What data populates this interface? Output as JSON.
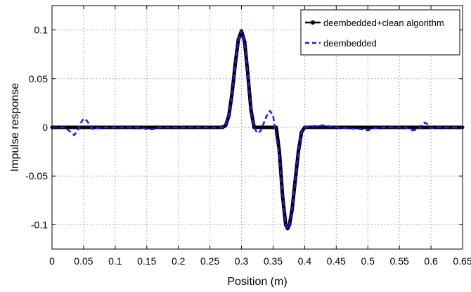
{
  "chart_data": {
    "type": "line",
    "xlabel": "Position (m)",
    "ylabel": "Impulse response",
    "xlim": [
      0,
      0.65
    ],
    "ylim": [
      -0.125,
      0.125
    ],
    "grid": true,
    "legend_position": "top-right",
    "x_ticks": [
      0,
      0.05,
      0.1,
      0.15,
      0.2,
      0.25,
      0.3,
      0.35,
      0.4,
      0.45,
      0.5,
      0.55,
      0.6,
      0.65
    ],
    "x_tick_labels": [
      "0",
      "0.05",
      "0.1",
      "0.15",
      "0.2",
      "0.25",
      "0.3",
      "0.35",
      "0.4",
      "0.45",
      "0.5",
      "0.55",
      "0.6",
      "0.65"
    ],
    "y_ticks": [
      0.1,
      0.05,
      0,
      -0.05,
      -0.1
    ],
    "y_tick_labels": [
      "0.1",
      "0.05",
      "0",
      "-0.05",
      "-0.1"
    ],
    "series": [
      {
        "name": "deembedded+clean algorithm",
        "color": "#000000",
        "style": "solid",
        "points": [
          [
            0,
            0
          ],
          [
            0.27,
            0
          ],
          [
            0.275,
            0.002
          ],
          [
            0.28,
            0.012
          ],
          [
            0.285,
            0.035
          ],
          [
            0.29,
            0.065
          ],
          [
            0.295,
            0.09
          ],
          [
            0.3,
            0.099
          ],
          [
            0.305,
            0.088
          ],
          [
            0.31,
            0.055
          ],
          [
            0.315,
            0.018
          ],
          [
            0.32,
            0
          ],
          [
            0.355,
            0
          ],
          [
            0.36,
            -0.025
          ],
          [
            0.365,
            -0.07
          ],
          [
            0.37,
            -0.1
          ],
          [
            0.373,
            -0.104
          ],
          [
            0.376,
            -0.1
          ],
          [
            0.38,
            -0.085
          ],
          [
            0.385,
            -0.055
          ],
          [
            0.39,
            -0.025
          ],
          [
            0.395,
            -0.005
          ],
          [
            0.4,
            0
          ],
          [
            0.65,
            0
          ]
        ]
      },
      {
        "name": "deembedded",
        "color": "#1a1aff",
        "style": "dashed",
        "points": [
          [
            0,
            0
          ],
          [
            0.02,
            0
          ],
          [
            0.03,
            -0.005
          ],
          [
            0.035,
            -0.008
          ],
          [
            0.04,
            -0.004
          ],
          [
            0.045,
            0.004
          ],
          [
            0.05,
            0.009
          ],
          [
            0.055,
            0.007
          ],
          [
            0.06,
            0.002
          ],
          [
            0.065,
            -0.002
          ],
          [
            0.07,
            -0.001
          ],
          [
            0.08,
            0
          ],
          [
            0.14,
            0
          ],
          [
            0.15,
            -0.002
          ],
          [
            0.16,
            -0.002
          ],
          [
            0.17,
            0
          ],
          [
            0.27,
            0
          ],
          [
            0.275,
            0.002
          ],
          [
            0.28,
            0.012
          ],
          [
            0.285,
            0.035
          ],
          [
            0.29,
            0.065
          ],
          [
            0.295,
            0.09
          ],
          [
            0.3,
            0.099
          ],
          [
            0.305,
            0.088
          ],
          [
            0.31,
            0.055
          ],
          [
            0.315,
            0.018
          ],
          [
            0.32,
            0
          ],
          [
            0.325,
            -0.006
          ],
          [
            0.33,
            -0.004
          ],
          [
            0.335,
            0.004
          ],
          [
            0.34,
            0.012
          ],
          [
            0.345,
            0.017
          ],
          [
            0.35,
            0.012
          ],
          [
            0.355,
            -0.01
          ],
          [
            0.36,
            -0.03
          ],
          [
            0.365,
            -0.07
          ],
          [
            0.37,
            -0.1
          ],
          [
            0.373,
            -0.104
          ],
          [
            0.376,
            -0.1
          ],
          [
            0.38,
            -0.085
          ],
          [
            0.385,
            -0.055
          ],
          [
            0.39,
            -0.025
          ],
          [
            0.395,
            -0.005
          ],
          [
            0.4,
            0
          ],
          [
            0.41,
            0.001
          ],
          [
            0.43,
            0.002
          ],
          [
            0.45,
            0
          ],
          [
            0.49,
            -0.002
          ],
          [
            0.5,
            -0.003
          ],
          [
            0.51,
            -0.001
          ],
          [
            0.52,
            0
          ],
          [
            0.56,
            0
          ],
          [
            0.57,
            -0.003
          ],
          [
            0.58,
            -0.002
          ],
          [
            0.585,
            0.002
          ],
          [
            0.59,
            0.005
          ],
          [
            0.595,
            0.003
          ],
          [
            0.6,
            -0.001
          ],
          [
            0.61,
            0
          ],
          [
            0.65,
            0
          ]
        ]
      }
    ]
  }
}
